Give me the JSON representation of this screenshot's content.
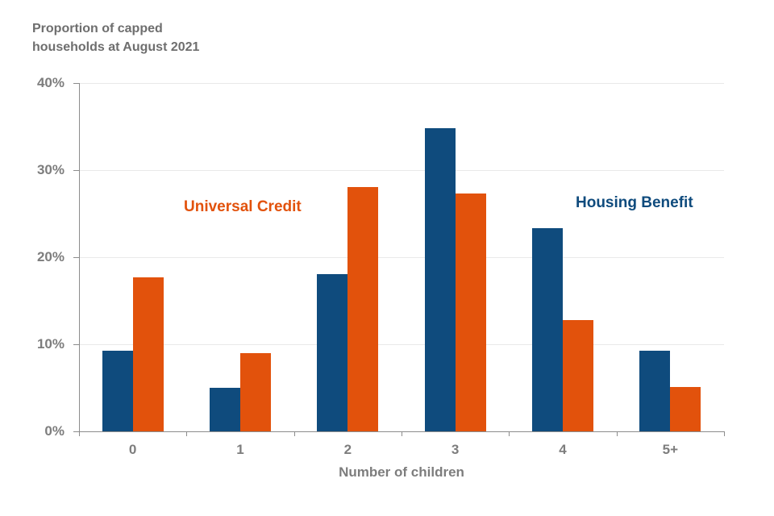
{
  "title": {
    "line1": "Proportion of capped",
    "line2": "households at August 2021"
  },
  "chart_data": {
    "type": "bar",
    "title": "Proportion of capped households at August 2021",
    "categories": [
      "0",
      "1",
      "2",
      "3",
      "4",
      "5+"
    ],
    "series": [
      {
        "name": "Housing Benefit",
        "color": "#0f4b7d",
        "values": [
          9.3,
          5.0,
          18.1,
          34.8,
          23.3,
          9.3
        ]
      },
      {
        "name": "Universal Credit",
        "color": "#e2520c",
        "values": [
          17.7,
          9.0,
          28.1,
          27.3,
          12.8,
          5.1
        ]
      }
    ],
    "xlabel": "Number of children",
    "ylabel": "",
    "ylim": [
      0,
      40
    ],
    "ytick_values": [
      0,
      10,
      20,
      30,
      40
    ],
    "ytick_labels": [
      "0%",
      "10%",
      "20%",
      "30%",
      "40%"
    ],
    "grid": true,
    "legend_position": "inline-annotations"
  }
}
